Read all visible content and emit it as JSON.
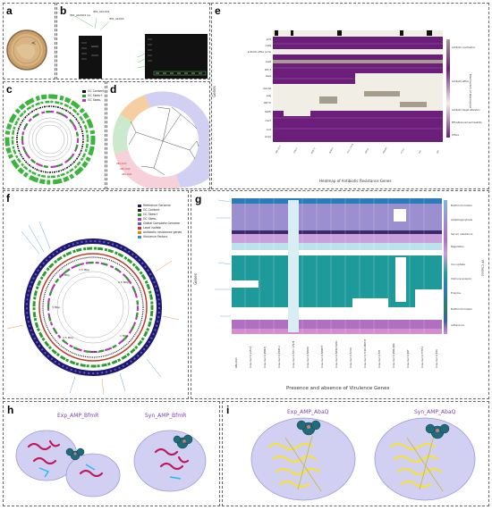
{
  "panels": {
    "a": "a",
    "b": "b",
    "c": "c",
    "d": "d",
    "e": "e",
    "f": "f",
    "g": "g",
    "h": "h",
    "i": "i"
  },
  "panel_c": {
    "legend": [
      "GC Content",
      "GC Skew+",
      "GC Skew-"
    ],
    "colors": {
      "gc": "#111111",
      "skew_pos": "#2a9d2a",
      "skew_neg": "#b040b0",
      "outer": "#3cb53c"
    }
  },
  "panel_e": {
    "xlabel": "Heatmap of Antibiotic Resistance Genes",
    "ylabel": "Genes",
    "right_label": "Mechanism of Resistance",
    "categories": [
      "Antibiotic inactivation",
      "Antibiotic efflux",
      "Antibiotic target alteration",
      "Efflux/Reduced permeability",
      "Others"
    ],
    "colors": {
      "main": "#6c1f7a",
      "light": "#f1eee6",
      "gray": "#a59d8e"
    }
  },
  "panel_f": {
    "legend": [
      "Reference Genome",
      "GC Content",
      "GC Skew+",
      "GC Skew-",
      "Global Complete Genome",
      "Local Isolate",
      "Antibiotic resistance genes",
      "Virulence Factors"
    ],
    "legend_colors": [
      "#1a1a6e",
      "#222222",
      "#2a9d2a",
      "#b040b0",
      "#7b4fc9",
      "#c0392b",
      "#e67e22",
      "#3b8fc4"
    ],
    "scale_labels": [
      "1.5 Mbp",
      "0.5 Mbp",
      "1 Mbp",
      "2 Mbp",
      "2.5 Mbp",
      "3 Mbp",
      "3.5 Mbp"
    ]
  },
  "panel_g": {
    "xlabel": "Presence and absence of Virulence Genes",
    "ylabel": "Genes",
    "right_label": "VF Classes",
    "classes": [
      "Biofilm formation",
      "Antiphagocytosis",
      "Serum resistance",
      "Regulation",
      "Iron uptake",
      "Immune evasion",
      "Enzyme",
      "Biofilm formation",
      "Adherence"
    ],
    "class_colors": [
      "#7fb7d6",
      "#9b8fd0",
      "#b06fc0",
      "#c9a0dc",
      "#1f9a9a",
      "#2b7bb9",
      "#2a7f62",
      "#3a5fa0",
      "#d18fd0"
    ],
    "columns": [
      "ABK-1013",
      "A.baumannii 1656-2",
      "A.baumannii MDR-TJ",
      "A.baumannii ZW85-1",
      "A.baumannii ATCC 17978",
      "A.baumannii AB030",
      "A.baumannii AB0057",
      "A.baumannii AB307-0294",
      "A.baumannii ACICU",
      "A.baumannii TCDC-AB0715",
      "A.baumannii AYE",
      "A.baumannii MDR-ZJ06",
      "A.baumannii SDF",
      "A.baumannii TYTH-1",
      "A.baumannii D36"
    ]
  },
  "panel_h": {
    "left_title": "Exp_AMP_BfmR",
    "right_title": "Syn_AMP_BfmR"
  },
  "panel_i": {
    "left_title": "Exp_AMP_AbaQ",
    "right_title": "Syn_AMP_AbaQ"
  }
}
